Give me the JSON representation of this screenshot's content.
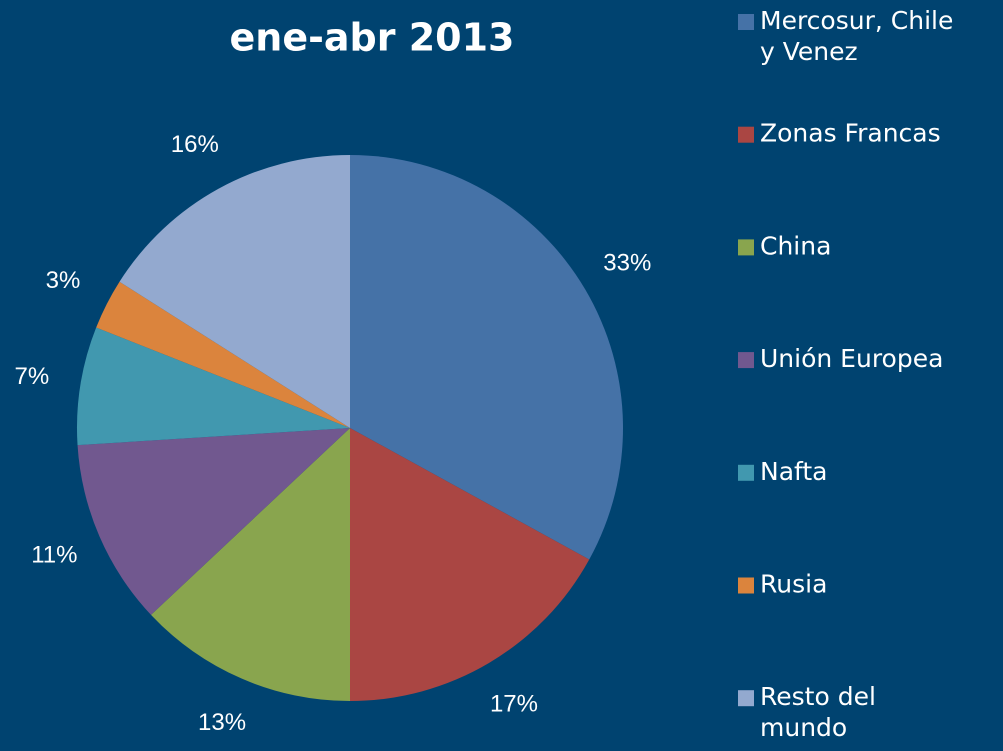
{
  "chart_data": {
    "type": "pie",
    "title": "ene-abr 2013",
    "categories": [
      "Mercosur, Chile y Venez",
      "Zonas Francas",
      "China",
      "Unión Europea",
      "Nafta",
      "Rusia",
      "Resto del mundo"
    ],
    "values": [
      33,
      17,
      13,
      11,
      7,
      3,
      16
    ],
    "value_labels": [
      "33%",
      "17%",
      "13%",
      "11%",
      "7%",
      "3%",
      "16%"
    ],
    "colors": [
      "#4572a7",
      "#aa4643",
      "#89a54e",
      "#71588f",
      "#4198af",
      "#db843d",
      "#93a9cf"
    ],
    "legend": "right"
  }
}
